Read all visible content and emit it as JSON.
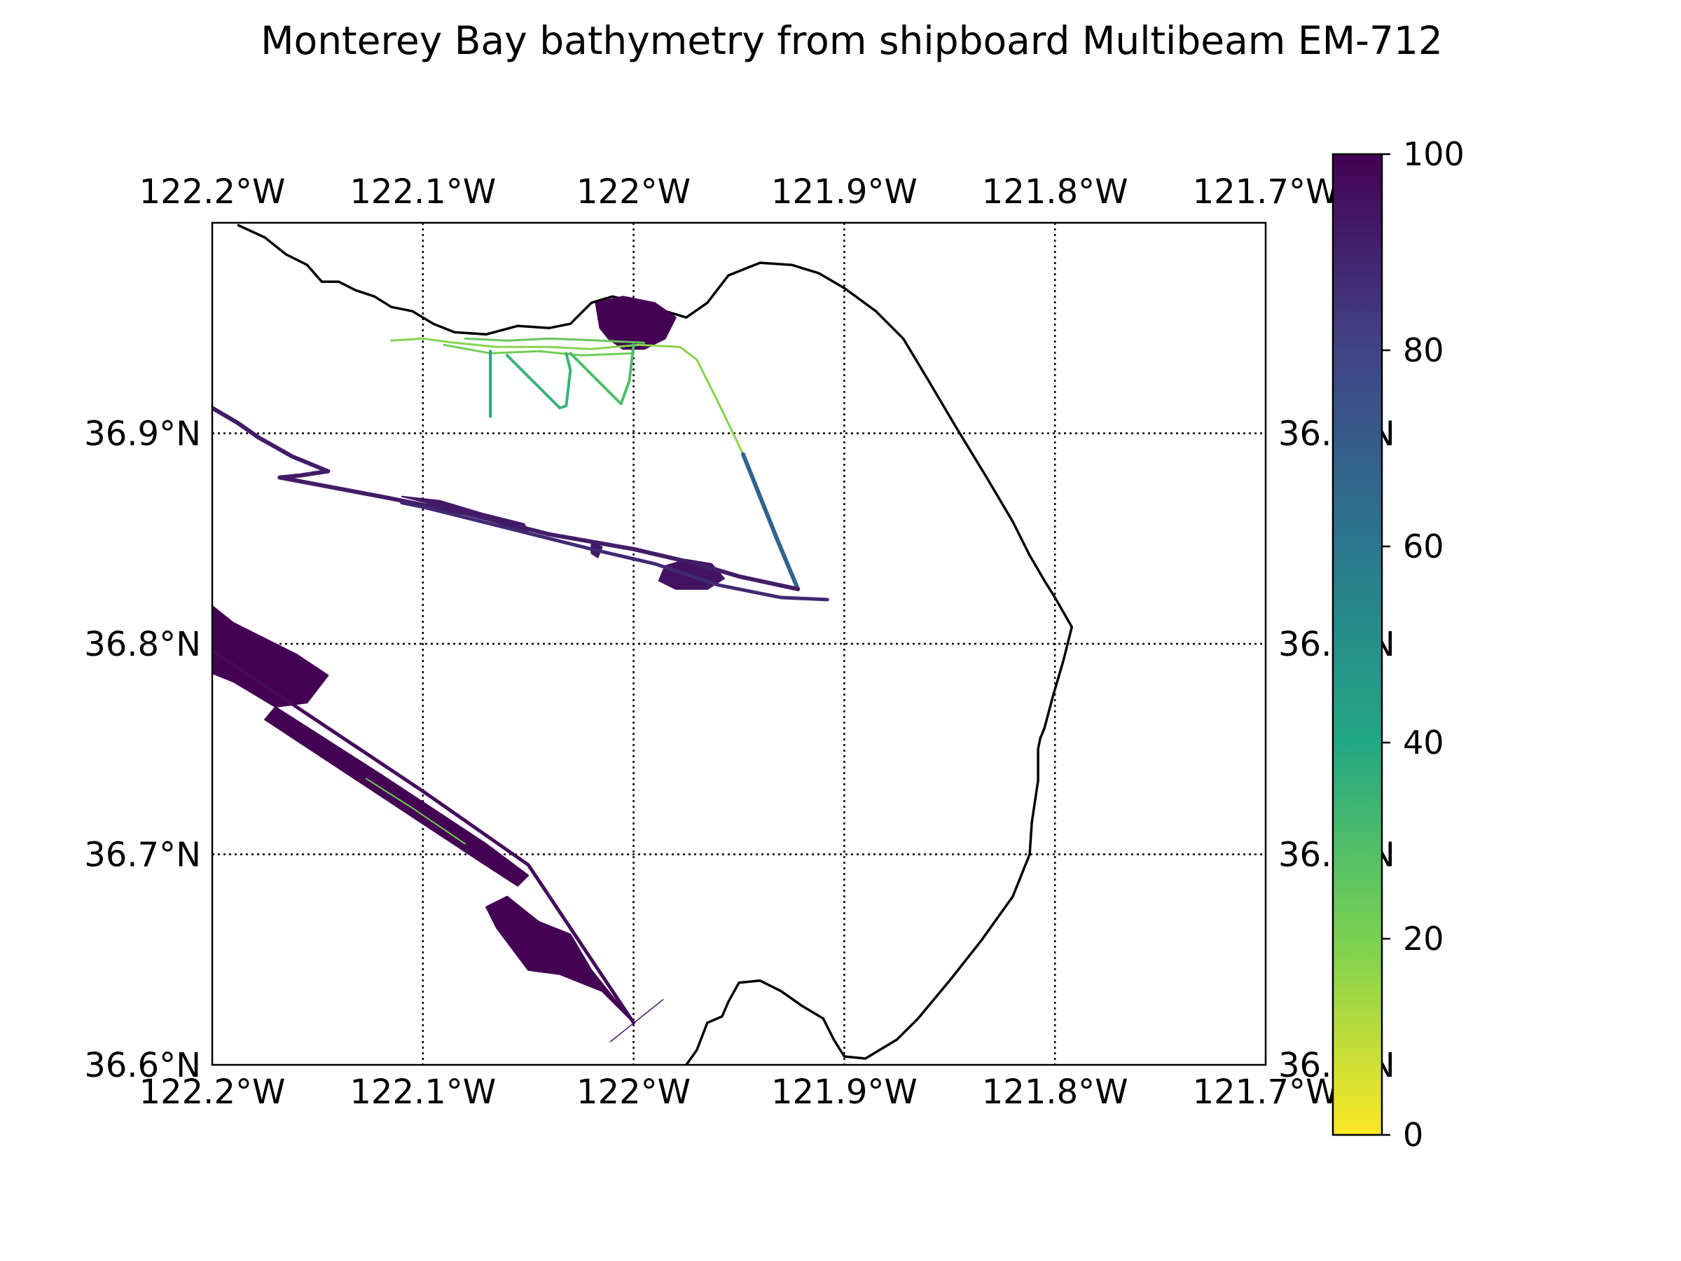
{
  "title": "Monterey Bay bathymetry from shipboard Multibeam EM-712",
  "map": {
    "lon_range": [
      -122.2,
      -121.7
    ],
    "lat_range": [
      36.6,
      37.0
    ],
    "gridlines": "dotted",
    "lon_ticks": [
      {
        "value": -122.2,
        "label": "122.2°W"
      },
      {
        "value": -122.1,
        "label": "122.1°W"
      },
      {
        "value": -122.0,
        "label": "122°W"
      },
      {
        "value": -121.9,
        "label": "121.9°W"
      },
      {
        "value": -121.8,
        "label": "121.8°W"
      },
      {
        "value": -121.7,
        "label": "121.7°W"
      }
    ],
    "lat_ticks": [
      {
        "value": 36.9,
        "label": "36.9°N"
      },
      {
        "value": 36.8,
        "label": "36.8°N"
      },
      {
        "value": 36.7,
        "label": "36.7°N"
      },
      {
        "value": 36.6,
        "label": "36.6°N"
      }
    ]
  },
  "colorbar": {
    "colormap": "viridis_r",
    "range": [
      0,
      100
    ],
    "ticks": [
      "0",
      "20",
      "40",
      "60",
      "80",
      "100"
    ],
    "colors": [
      "#fde725",
      "#7ad151",
      "#22a884",
      "#2a788e",
      "#414487",
      "#440154"
    ]
  },
  "coastline": {
    "color": "#000000",
    "points": [
      [
        -122.188,
        36.999
      ],
      [
        -122.175,
        36.993
      ],
      [
        -122.165,
        36.985
      ],
      [
        -122.155,
        36.98
      ],
      [
        -122.148,
        36.972
      ],
      [
        -122.14,
        36.972
      ],
      [
        -122.132,
        36.968
      ],
      [
        -122.123,
        36.965
      ],
      [
        -122.115,
        36.96
      ],
      [
        -122.105,
        36.958
      ],
      [
        -122.095,
        36.952
      ],
      [
        -122.085,
        36.948
      ],
      [
        -122.07,
        36.947
      ],
      [
        -122.055,
        36.951
      ],
      [
        -122.04,
        36.95
      ],
      [
        -122.03,
        36.952
      ],
      [
        -122.02,
        36.962
      ],
      [
        -122.01,
        36.965
      ],
      [
        -121.998,
        36.962
      ],
      [
        -121.985,
        36.958
      ],
      [
        -121.975,
        36.955
      ],
      [
        -121.965,
        36.962
      ],
      [
        -121.955,
        36.975
      ],
      [
        -121.94,
        36.981
      ],
      [
        -121.925,
        36.98
      ],
      [
        -121.912,
        36.976
      ],
      [
        -121.9,
        36.969
      ],
      [
        -121.885,
        36.958
      ],
      [
        -121.872,
        36.945
      ],
      [
        -121.86,
        36.925
      ],
      [
        -121.847,
        36.903
      ],
      [
        -121.833,
        36.88
      ],
      [
        -121.82,
        36.858
      ],
      [
        -121.812,
        36.842
      ],
      [
        -121.805,
        36.83
      ],
      [
        -121.8,
        36.822
      ],
      [
        -121.792,
        36.808
      ],
      [
        -121.796,
        36.792
      ],
      [
        -121.801,
        36.775
      ],
      [
        -121.805,
        36.76
      ],
      [
        -121.807,
        36.755
      ],
      [
        -121.808,
        36.75
      ],
      [
        -121.808,
        36.735
      ],
      [
        -121.811,
        36.715
      ],
      [
        -121.812,
        36.7
      ],
      [
        -121.82,
        36.68
      ],
      [
        -121.835,
        36.659
      ],
      [
        -121.85,
        36.64
      ],
      [
        -121.865,
        36.622
      ],
      [
        -121.875,
        36.612
      ],
      [
        -121.89,
        36.603
      ],
      [
        -121.9,
        36.604
      ],
      [
        -121.905,
        36.612
      ],
      [
        -121.91,
        36.622
      ],
      [
        -121.92,
        36.628
      ],
      [
        -121.93,
        36.635
      ],
      [
        -121.94,
        36.64
      ],
      [
        -121.95,
        36.639
      ],
      [
        -121.955,
        36.63
      ],
      [
        -121.958,
        36.623
      ],
      [
        -121.965,
        36.62
      ],
      [
        -121.97,
        36.607
      ],
      [
        -121.975,
        36.6
      ]
    ]
  },
  "tracks": [
    {
      "value": 18,
      "width": 3,
      "points": [
        [
          -122.115,
          36.944
        ],
        [
          -122.1,
          36.945
        ],
        [
          -122.085,
          36.943
        ],
        [
          -122.065,
          36.941
        ],
        [
          -122.04,
          36.941
        ],
        [
          -122.02,
          36.94
        ],
        [
          -121.998,
          36.942
        ],
        [
          -121.978,
          36.941
        ],
        [
          -121.97,
          36.935
        ],
        [
          -121.96,
          36.915
        ],
        [
          -121.948,
          36.89
        ]
      ]
    },
    {
      "value": 22,
      "width": 3,
      "points": [
        [
          -122.09,
          36.942
        ],
        [
          -122.068,
          36.938
        ],
        [
          -122.045,
          36.939
        ],
        [
          -122.025,
          36.937
        ],
        [
          -122.0,
          36.938
        ]
      ]
    },
    {
      "value": 25,
      "width": 3,
      "points": [
        [
          -122.08,
          36.945
        ],
        [
          -122.06,
          36.944
        ],
        [
          -122.04,
          36.945
        ],
        [
          -122.015,
          36.944
        ],
        [
          -121.995,
          36.943
        ]
      ]
    },
    {
      "value": 40,
      "width": 4,
      "points": [
        [
          -122.068,
          36.939
        ],
        [
          -122.068,
          36.925
        ],
        [
          -122.068,
          36.908
        ]
      ]
    },
    {
      "value": 35,
      "width": 4,
      "points": [
        [
          -122.06,
          36.937
        ],
        [
          -122.048,
          36.925
        ],
        [
          -122.035,
          36.912
        ],
        [
          -122.032,
          36.913
        ],
        [
          -122.03,
          36.93
        ],
        [
          -122.032,
          36.938
        ]
      ]
    },
    {
      "value": 30,
      "width": 4,
      "points": [
        [
          -122.03,
          36.938
        ],
        [
          -122.018,
          36.926
        ],
        [
          -122.006,
          36.914
        ],
        [
          -122.002,
          36.925
        ],
        [
          -122.0,
          36.942
        ]
      ]
    },
    {
      "value": 68,
      "width": 6,
      "points": [
        [
          -121.948,
          36.89
        ],
        [
          -121.94,
          36.87
        ],
        [
          -121.932,
          36.85
        ],
        [
          -121.922,
          36.826
        ]
      ]
    },
    {
      "value": 92,
      "width": 6,
      "points": [
        [
          -122.2,
          36.912
        ],
        [
          -122.188,
          36.905
        ],
        [
          -122.178,
          36.898
        ],
        [
          -122.162,
          36.889
        ],
        [
          -122.145,
          36.882
        ],
        [
          -122.158,
          36.88
        ],
        [
          -122.168,
          36.879
        ],
        [
          -122.12,
          36.87
        ],
        [
          -122.08,
          36.862
        ],
        [
          -122.04,
          36.852
        ],
        [
          -122.0,
          36.845
        ],
        [
          -121.97,
          36.838
        ],
        [
          -121.95,
          36.832
        ],
        [
          -121.922,
          36.826
        ]
      ]
    },
    {
      "value": 88,
      "width": 5,
      "points": [
        [
          -121.908,
          36.821
        ],
        [
          -121.93,
          36.822
        ],
        [
          -121.96,
          36.828
        ],
        [
          -121.99,
          36.838
        ],
        [
          -122.02,
          36.845
        ],
        [
          -122.06,
          36.855
        ],
        [
          -122.1,
          36.865
        ],
        [
          -122.11,
          36.867
        ]
      ]
    },
    {
      "value": 97,
      "width": 5,
      "points": [
        [
          -122.205,
          36.8
        ],
        [
          -122.16,
          36.77
        ],
        [
          -122.1,
          36.73
        ],
        [
          -122.05,
          36.695
        ],
        [
          -122.0,
          36.62
        ]
      ]
    },
    {
      "value": 22,
      "width": 2,
      "points": [
        [
          -122.127,
          36.736
        ],
        [
          -122.105,
          36.722
        ],
        [
          -122.08,
          36.705
        ]
      ]
    },
    {
      "value": 95,
      "width": 1.5,
      "points": [
        [
          -122.011,
          36.611
        ],
        [
          -121.986,
          36.631
        ]
      ]
    }
  ],
  "swaths": [
    {
      "value": 100,
      "points": [
        [
          -122.215,
          36.83
        ],
        [
          -122.19,
          36.81
        ],
        [
          -122.16,
          36.795
        ],
        [
          -122.145,
          36.785
        ],
        [
          -122.155,
          36.772
        ],
        [
          -122.17,
          36.77
        ],
        [
          -122.19,
          36.782
        ],
        [
          -122.215,
          36.792
        ]
      ]
    },
    {
      "value": 100,
      "points": [
        [
          -122.17,
          36.77
        ],
        [
          -122.12,
          36.738
        ],
        [
          -122.07,
          36.705
        ],
        [
          -122.05,
          36.69
        ],
        [
          -122.055,
          36.685
        ],
        [
          -122.075,
          36.698
        ],
        [
          -122.125,
          36.731
        ],
        [
          -122.175,
          36.764
        ]
      ]
    },
    {
      "value": 100,
      "points": [
        [
          -122.06,
          36.68
        ],
        [
          -122.045,
          36.668
        ],
        [
          -122.03,
          36.662
        ],
        [
          -122.02,
          36.645
        ],
        [
          -122.0,
          36.62
        ],
        [
          -122.015,
          36.635
        ],
        [
          -122.035,
          36.643
        ],
        [
          -122.05,
          36.645
        ],
        [
          -122.065,
          36.665
        ],
        [
          -122.07,
          36.675
        ]
      ]
    },
    {
      "value": 100,
      "points": [
        [
          -122.018,
          36.962
        ],
        [
          -122.005,
          36.965
        ],
        [
          -121.99,
          36.962
        ],
        [
          -121.98,
          36.955
        ],
        [
          -121.985,
          36.945
        ],
        [
          -121.995,
          36.94
        ],
        [
          -122.005,
          36.94
        ],
        [
          -122.012,
          36.945
        ],
        [
          -122.016,
          36.95
        ]
      ]
    },
    {
      "value": 95,
      "points": [
        [
          -121.985,
          36.837
        ],
        [
          -121.975,
          36.84
        ],
        [
          -121.963,
          36.838
        ],
        [
          -121.957,
          36.831
        ],
        [
          -121.965,
          36.826
        ],
        [
          -121.98,
          36.826
        ],
        [
          -121.988,
          36.83
        ]
      ]
    },
    {
      "value": 93,
      "points": [
        [
          -122.11,
          36.87
        ],
        [
          -122.09,
          36.865
        ],
        [
          -122.07,
          36.859
        ],
        [
          -122.05,
          36.853
        ],
        [
          -122.052,
          36.857
        ],
        [
          -122.072,
          36.862
        ],
        [
          -122.092,
          36.868
        ]
      ]
    },
    {
      "value": 93,
      "points": [
        [
          -122.02,
          36.848
        ],
        [
          -122.015,
          36.846
        ],
        [
          -122.017,
          36.841
        ],
        [
          -122.02,
          36.843
        ]
      ]
    }
  ]
}
